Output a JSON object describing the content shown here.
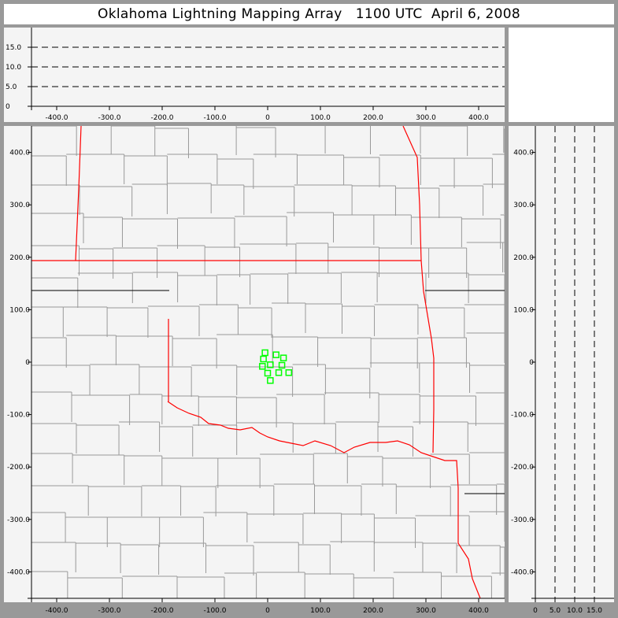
{
  "title": "Oklahoma Lightning Mapping Array   1100 UTC  April 6, 2008",
  "colors": {
    "background": "#999999",
    "panel": "#f4f4f4",
    "state_border": "#ff0000",
    "county_border": "#999999",
    "source_marker": "#00ff00",
    "axis": "#000000"
  },
  "chart_data": [
    {
      "type": "scatter",
      "panel": "altitude-vs-east-west",
      "xlim": [
        -450,
        450
      ],
      "ylim": [
        0,
        20
      ],
      "x_ticks": [
        "-400.0",
        "-300.0",
        "-200.0",
        "-100.0",
        "0",
        "100.0",
        "200.0",
        "300.0",
        "400.0"
      ],
      "x_tick_values": [
        -400,
        -300,
        -200,
        -100,
        0,
        100,
        200,
        300,
        400
      ],
      "y_ticks": [
        "0",
        "5.0",
        "10.0",
        "15.0"
      ],
      "y_tick_values": [
        0,
        5,
        10,
        15
      ],
      "grid": "dashed horizontal at 5, 10, 15",
      "points": []
    },
    {
      "type": "scatter",
      "panel": "plan-view-map",
      "xlim": [
        -450,
        450
      ],
      "ylim": [
        -450,
        450
      ],
      "x_ticks": [
        "-400.0",
        "-300.0",
        "-200.0",
        "-100.0",
        "0",
        "100.0",
        "200.0",
        "300.0",
        "400.0"
      ],
      "x_tick_values": [
        -400,
        -300,
        -200,
        -100,
        0,
        100,
        200,
        300,
        400
      ],
      "y_ticks": [
        "400.0",
        "300.0",
        "200.0",
        "100.0",
        "0",
        "-100.0",
        "-200.0",
        "-300.0",
        "-400.0"
      ],
      "y_tick_values": [
        400,
        300,
        200,
        100,
        0,
        -100,
        -200,
        -300,
        -400
      ],
      "background_map": "state and county borders",
      "marker": "open square",
      "points": [
        {
          "x": -5,
          "y": 18
        },
        {
          "x": -8,
          "y": 6
        },
        {
          "x": 16,
          "y": 14
        },
        {
          "x": 30,
          "y": 8
        },
        {
          "x": -10,
          "y": -8
        },
        {
          "x": 5,
          "y": -5
        },
        {
          "x": 27,
          "y": -6
        },
        {
          "x": 0,
          "y": -21
        },
        {
          "x": 21,
          "y": -20
        },
        {
          "x": 40,
          "y": -20
        },
        {
          "x": 5,
          "y": -35
        }
      ]
    },
    {
      "type": "scatter",
      "panel": "north-south-vs-altitude",
      "xlim": [
        0,
        20
      ],
      "ylim": [
        -450,
        450
      ],
      "x_ticks": [
        "0",
        "5.0",
        "10.0",
        "15.0"
      ],
      "x_tick_values": [
        0,
        5,
        10,
        15
      ],
      "y_ticks": [
        "400.0",
        "300.0",
        "200.0",
        "100.0",
        "0",
        "-100.0",
        "-200.0",
        "-300.0",
        "-400.0"
      ],
      "y_tick_values": [
        400,
        300,
        200,
        100,
        0,
        -100,
        -200,
        -300,
        -400
      ],
      "grid": "dashed vertical at 5, 10, 15",
      "points": []
    }
  ]
}
